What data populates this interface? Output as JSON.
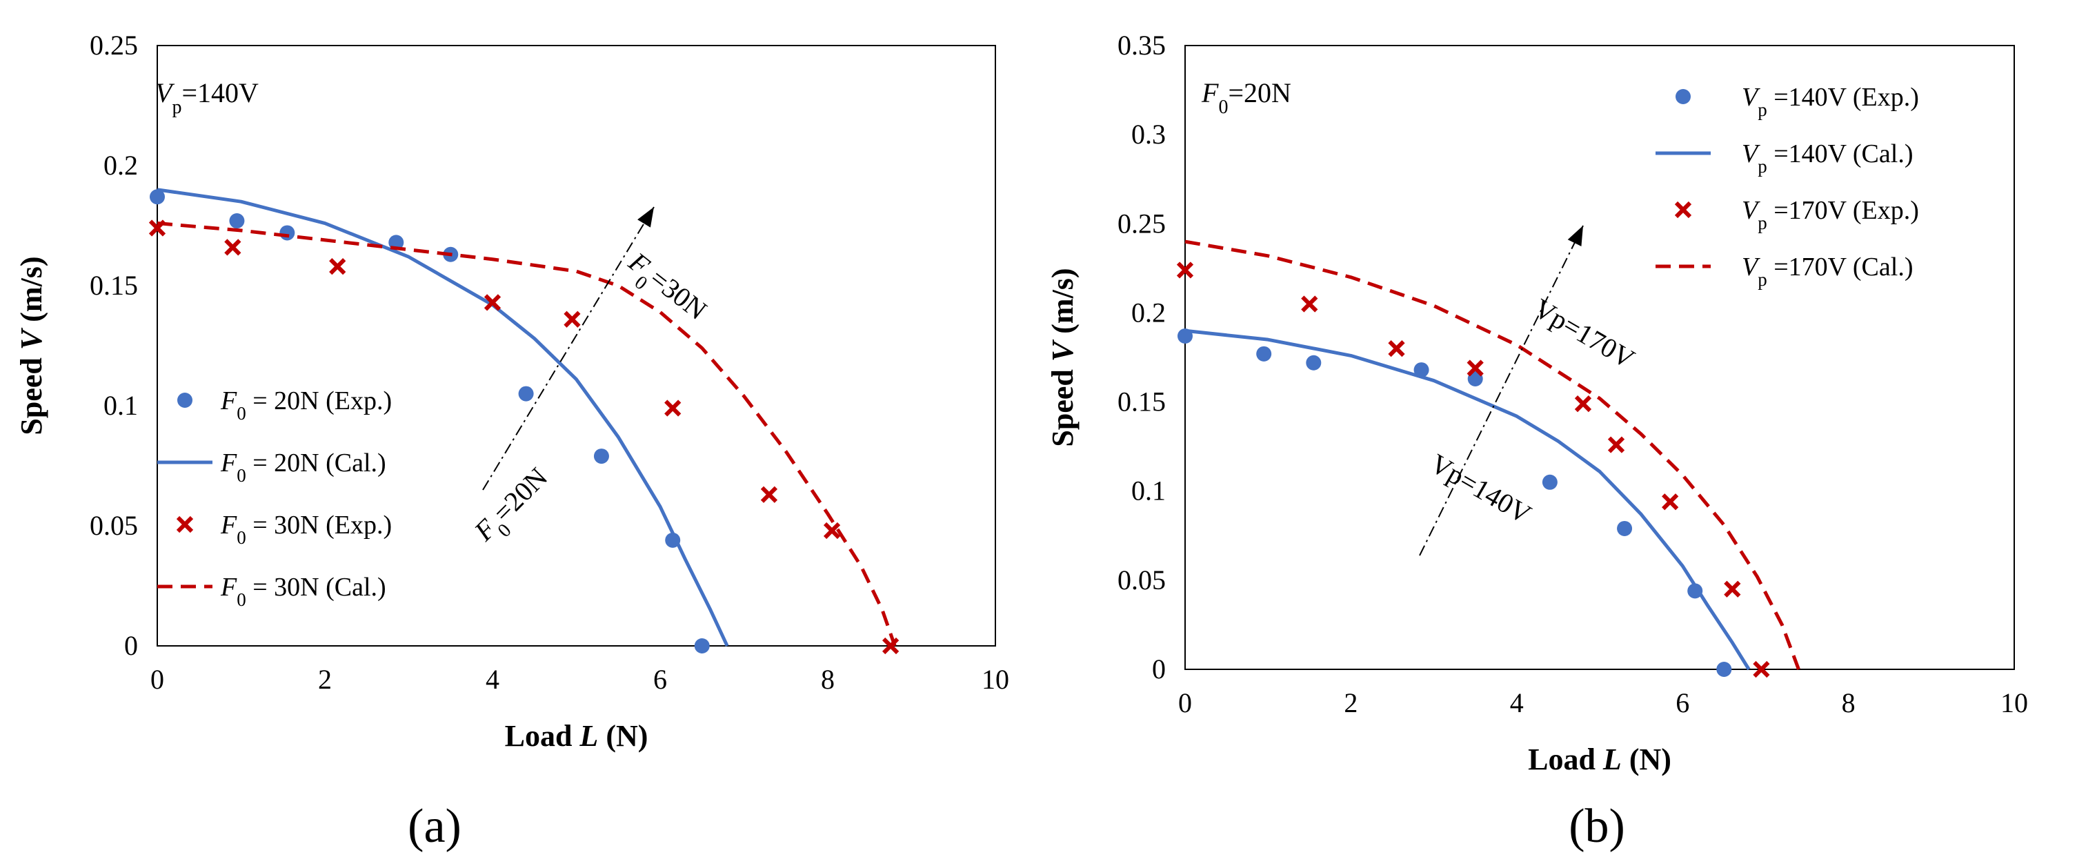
{
  "chart_data": [
    {
      "type": "scatter",
      "panel_label": "(a)",
      "xlabel": {
        "pre": "Load ",
        "var": "L",
        "post": " (N)"
      },
      "ylabel": {
        "pre": "Speed ",
        "var": "V",
        "post": " (m/s)"
      },
      "xlim": [
        0,
        10
      ],
      "ylim": [
        0,
        0.25
      ],
      "x_ticks": [
        "0",
        "2",
        "4",
        "6",
        "8",
        "10"
      ],
      "y_ticks": [
        "0",
        "0.05",
        "0.1",
        "0.15",
        "0.2",
        "0.25"
      ],
      "grid": false,
      "legend_position": "left-middle",
      "annotations": {
        "condition": {
          "var": "V",
          "sub": "p",
          "value": "=140V"
        },
        "upper_curve": {
          "var": "F",
          "sub": "0",
          "value": "=30N"
        },
        "lower_curve": {
          "var": "F",
          "sub": "0",
          "value": "=20N"
        }
      },
      "series": [
        {
          "name": "F0 = 20N (Exp.)",
          "legend": {
            "var": "F",
            "sub": "0",
            "rest": " = 20N (Exp.)"
          },
          "kind": "marker-circle",
          "color": "#4472C4",
          "x": [
            0,
            0.95,
            1.55,
            2.85,
            3.5,
            4.4,
            5.3,
            6.15,
            6.5
          ],
          "y": [
            0.187,
            0.177,
            0.172,
            0.168,
            0.163,
            0.105,
            0.079,
            0.044,
            0.0
          ]
        },
        {
          "name": "F0 = 20N (Cal.)",
          "legend": {
            "var": "F",
            "sub": "0",
            "rest": " = 20N (Cal.)"
          },
          "kind": "line-solid",
          "color": "#4472C4",
          "x": [
            0,
            1,
            2,
            3,
            4,
            4.5,
            5,
            5.5,
            6,
            6.3,
            6.6,
            6.8
          ],
          "y": [
            0.19,
            0.185,
            0.176,
            0.162,
            0.142,
            0.128,
            0.111,
            0.087,
            0.058,
            0.036,
            0.015,
            0.0
          ]
        },
        {
          "name": "F0 = 30N (Exp.)",
          "legend": {
            "var": "F",
            "sub": "0",
            "rest": " = 30N (Exp.)"
          },
          "kind": "marker-x",
          "color": "#C00000",
          "x": [
            0,
            0.9,
            2.15,
            4.0,
            4.95,
            6.15,
            7.3,
            8.05,
            8.75
          ],
          "y": [
            0.174,
            0.166,
            0.158,
            0.143,
            0.136,
            0.099,
            0.063,
            0.048,
            0.0
          ]
        },
        {
          "name": "F0 = 30N (Cal.)",
          "legend": {
            "var": "F",
            "sub": "0",
            "rest": " = 30N (Cal.)"
          },
          "kind": "line-dashed",
          "color": "#C00000",
          "x": [
            0,
            1,
            2,
            3,
            4,
            5,
            5.5,
            6,
            6.5,
            7,
            7.5,
            8,
            8.4,
            8.65,
            8.8
          ],
          "y": [
            0.176,
            0.173,
            0.169,
            0.165,
            0.161,
            0.156,
            0.15,
            0.139,
            0.124,
            0.104,
            0.081,
            0.055,
            0.033,
            0.015,
            0.0
          ]
        }
      ]
    },
    {
      "type": "scatter",
      "panel_label": "(b)",
      "xlabel": {
        "pre": "Load ",
        "var": "L",
        "post": " (N)"
      },
      "ylabel": {
        "pre": "Speed ",
        "var": "V",
        "post": " (m/s)"
      },
      "xlim": [
        0,
        10
      ],
      "ylim": [
        0,
        0.35
      ],
      "x_ticks": [
        "0",
        "2",
        "4",
        "6",
        "8",
        "10"
      ],
      "y_ticks": [
        "0",
        "0.05",
        "0.1",
        "0.15",
        "0.2",
        "0.25",
        "0.3",
        "0.35"
      ],
      "grid": false,
      "legend_position": "top-right",
      "annotations": {
        "condition": {
          "var": "F",
          "sub": "0",
          "value": "=20N"
        },
        "upper_curve": {
          "text": "Vp=170V"
        },
        "lower_curve": {
          "text": "Vp=140V"
        }
      },
      "series": [
        {
          "name": "Vp = 140V (Exp.)",
          "legend": {
            "var": "V",
            "sub": "p",
            "rest": " =140V (Exp.)"
          },
          "kind": "marker-circle",
          "color": "#4472C4",
          "x": [
            0,
            0.95,
            1.55,
            2.85,
            3.5,
            4.4,
            5.3,
            6.15,
            6.5
          ],
          "y": [
            0.187,
            0.177,
            0.172,
            0.168,
            0.163,
            0.105,
            0.079,
            0.044,
            0.0
          ]
        },
        {
          "name": "Vp = 140V (Cal.)",
          "legend": {
            "var": "V",
            "sub": "p",
            "rest": " =140V  (Cal.)"
          },
          "kind": "line-solid",
          "color": "#4472C4",
          "x": [
            0,
            1,
            2,
            3,
            4,
            4.5,
            5,
            5.5,
            6,
            6.3,
            6.6,
            6.8
          ],
          "y": [
            0.19,
            0.185,
            0.176,
            0.162,
            0.142,
            0.128,
            0.111,
            0.087,
            0.058,
            0.036,
            0.015,
            0.0
          ]
        },
        {
          "name": "Vp = 170V (Exp.)",
          "legend": {
            "var": "V",
            "sub": "p",
            "rest": " =170V (Exp.)"
          },
          "kind": "marker-x",
          "color": "#C00000",
          "x": [
            0,
            1.5,
            2.55,
            3.5,
            4.8,
            5.2,
            5.85,
            6.6,
            6.95
          ],
          "y": [
            0.224,
            0.205,
            0.18,
            0.169,
            0.149,
            0.126,
            0.094,
            0.045,
            0.0
          ]
        },
        {
          "name": "Vp = 170V (Cal.)",
          "legend": {
            "var": "V",
            "sub": "p",
            "rest": " =170V  (Cal.)"
          },
          "kind": "line-dashed",
          "color": "#C00000",
          "x": [
            0,
            1,
            2,
            3,
            4,
            5,
            5.5,
            6,
            6.5,
            6.9,
            7.2,
            7.4
          ],
          "y": [
            0.24,
            0.232,
            0.22,
            0.204,
            0.182,
            0.152,
            0.132,
            0.109,
            0.081,
            0.052,
            0.025,
            0.0
          ]
        }
      ]
    }
  ]
}
